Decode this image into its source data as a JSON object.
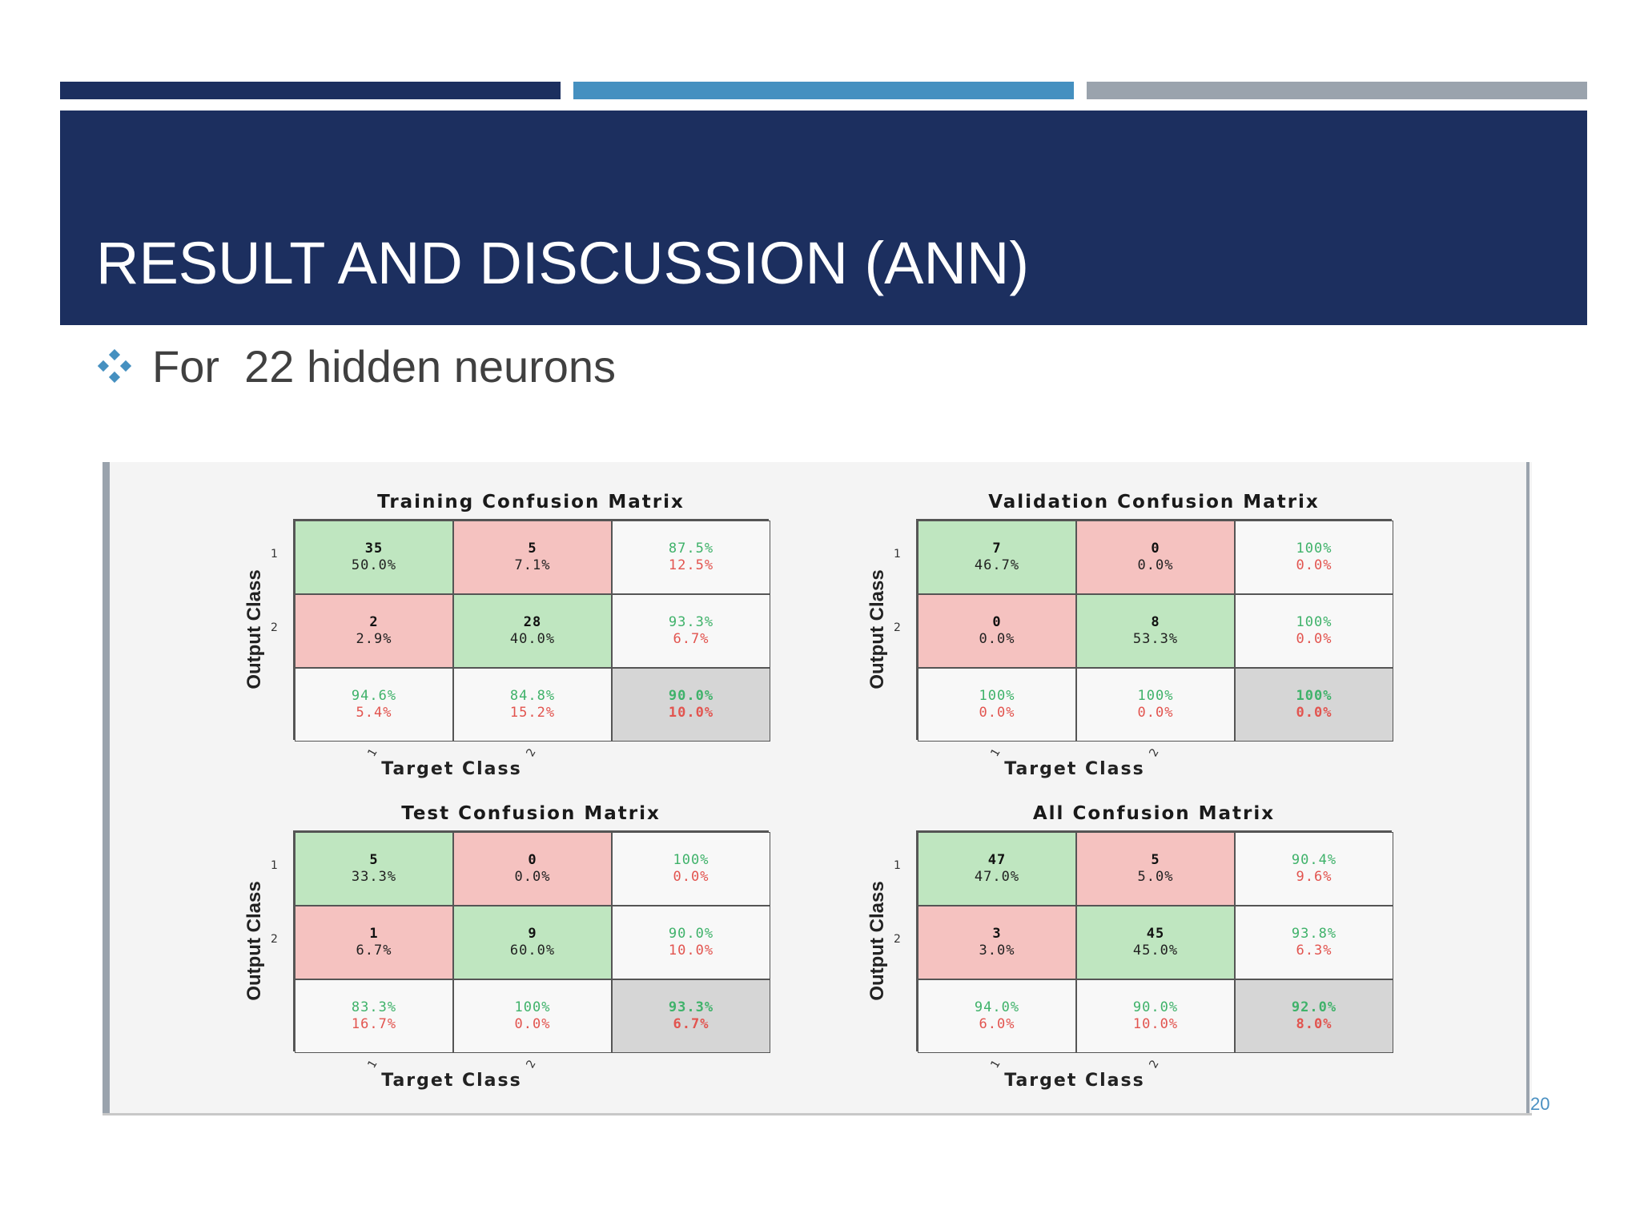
{
  "colors": {
    "accent_dark": "#1c2f5f",
    "accent_blue": "#4590c0",
    "accent_gray": "#9aa3ad",
    "correct_cell": "#bfe6c0",
    "wrong_cell": "#f5c2c0",
    "good_text": "#3fb26a",
    "bad_text": "#e2544f"
  },
  "slide": {
    "title": "RESULT AND DISCUSSION (ANN)",
    "bullet_icon": "diamond-cluster-icon",
    "bullet": "For  22 hidden neurons",
    "page_number": "20"
  },
  "chart_data": [
    {
      "type": "table",
      "title": "Training Confusion Matrix",
      "xlabel": "Target Class",
      "ylabel": "Output Class",
      "row_ticks": [
        "1",
        "2"
      ],
      "col_ticks": [
        "1",
        "2"
      ],
      "rows": [
        [
          {
            "count": "35",
            "pct": "50.0%"
          },
          {
            "count": "5",
            "pct": "7.1%"
          },
          {
            "good": "87.5%",
            "bad": "12.5%"
          }
        ],
        [
          {
            "count": "2",
            "pct": "2.9%"
          },
          {
            "count": "28",
            "pct": "40.0%"
          },
          {
            "good": "93.3%",
            "bad": "6.7%"
          }
        ],
        [
          {
            "good": "94.6%",
            "bad": "5.4%"
          },
          {
            "good": "84.8%",
            "bad": "15.2%"
          },
          {
            "good": "90.0%",
            "bad": "10.0%"
          }
        ]
      ]
    },
    {
      "type": "table",
      "title": "Validation Confusion Matrix",
      "xlabel": "Target Class",
      "ylabel": "Output Class",
      "row_ticks": [
        "1",
        "2"
      ],
      "col_ticks": [
        "1",
        "2"
      ],
      "rows": [
        [
          {
            "count": "7",
            "pct": "46.7%"
          },
          {
            "count": "0",
            "pct": "0.0%"
          },
          {
            "good": "100%",
            "bad": "0.0%"
          }
        ],
        [
          {
            "count": "0",
            "pct": "0.0%"
          },
          {
            "count": "8",
            "pct": "53.3%"
          },
          {
            "good": "100%",
            "bad": "0.0%"
          }
        ],
        [
          {
            "good": "100%",
            "bad": "0.0%"
          },
          {
            "good": "100%",
            "bad": "0.0%"
          },
          {
            "good": "100%",
            "bad": "0.0%"
          }
        ]
      ]
    },
    {
      "type": "table",
      "title": "Test Confusion Matrix",
      "xlabel": "Target Class",
      "ylabel": "Output Class",
      "row_ticks": [
        "1",
        "2"
      ],
      "col_ticks": [
        "1",
        "2"
      ],
      "rows": [
        [
          {
            "count": "5",
            "pct": "33.3%"
          },
          {
            "count": "0",
            "pct": "0.0%"
          },
          {
            "good": "100%",
            "bad": "0.0%"
          }
        ],
        [
          {
            "count": "1",
            "pct": "6.7%"
          },
          {
            "count": "9",
            "pct": "60.0%"
          },
          {
            "good": "90.0%",
            "bad": "10.0%"
          }
        ],
        [
          {
            "good": "83.3%",
            "bad": "16.7%"
          },
          {
            "good": "100%",
            "bad": "0.0%"
          },
          {
            "good": "93.3%",
            "bad": "6.7%"
          }
        ]
      ]
    },
    {
      "type": "table",
      "title": "All Confusion Matrix",
      "xlabel": "Target Class",
      "ylabel": "Output Class",
      "row_ticks": [
        "1",
        "2"
      ],
      "col_ticks": [
        "1",
        "2"
      ],
      "rows": [
        [
          {
            "count": "47",
            "pct": "47.0%"
          },
          {
            "count": "5",
            "pct": "5.0%"
          },
          {
            "good": "90.4%",
            "bad": "9.6%"
          }
        ],
        [
          {
            "count": "3",
            "pct": "3.0%"
          },
          {
            "count": "45",
            "pct": "45.0%"
          },
          {
            "good": "93.8%",
            "bad": "6.3%"
          }
        ],
        [
          {
            "good": "94.0%",
            "bad": "6.0%"
          },
          {
            "good": "90.0%",
            "bad": "10.0%"
          },
          {
            "good": "92.0%",
            "bad": "8.0%"
          }
        ]
      ]
    }
  ]
}
